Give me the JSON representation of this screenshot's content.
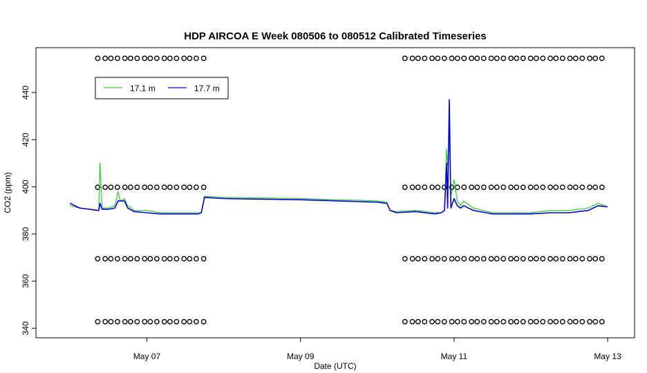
{
  "chart_data": {
    "type": "line",
    "title": "HDP AIRCOA E  Week 080506 to 080512  Calibrated Timeseries",
    "xlabel": "Date (UTC)",
    "ylabel": "CO2 (ppm)",
    "xlim": [
      "2008-05-06 00:00",
      "2008-05-13 00:00"
    ],
    "ylim": [
      340,
      455
    ],
    "x_ticks": [
      {
        "label": "May 07",
        "value": "2008-05-07 00:00"
      },
      {
        "label": "May 09",
        "value": "2008-05-09 00:00"
      },
      {
        "label": "May 11",
        "value": "2008-05-11 00:00"
      },
      {
        "label": "May 13",
        "value": "2008-05-13 00:00"
      }
    ],
    "y_ticks": [
      {
        "label": "340",
        "value": 340
      },
      {
        "label": "360",
        "value": 360
      },
      {
        "label": "380",
        "value": 380
      },
      {
        "label": "400",
        "value": 400
      },
      {
        "label": "420",
        "value": 420
      },
      {
        "label": "440",
        "value": 440
      }
    ],
    "legend": {
      "placement": "top-left"
    },
    "series": [
      {
        "name": "17.1 m",
        "color": "#00c000",
        "x": [
          "2008-05-06 00:00",
          "2008-05-06 03:00",
          "2008-05-06 06:00",
          "2008-05-06 08:30",
          "2008-05-06 09:00",
          "2008-05-06 09:20",
          "2008-05-06 10:00",
          "2008-05-06 12:00",
          "2008-05-06 14:00",
          "2008-05-06 15:00",
          "2008-05-06 15:40",
          "2008-05-06 17:00",
          "2008-05-06 18:00",
          "2008-05-06 20:00",
          "2008-05-07 00:00",
          "2008-05-07 04:00",
          "2008-05-07 08:00",
          "2008-05-07 12:00",
          "2008-05-07 16:00",
          "2008-05-07 17:00",
          "2008-05-07 18:00",
          "2008-05-08 00:00",
          "2008-05-09 00:00",
          "2008-05-10 00:00",
          "2008-05-10 03:00",
          "2008-05-10 04:00",
          "2008-05-10 06:00",
          "2008-05-10 12:00",
          "2008-05-10 18:00",
          "2008-05-10 20:00",
          "2008-05-10 21:00",
          "2008-05-10 21:40",
          "2008-05-10 22:00",
          "2008-05-10 22:30",
          "2008-05-10 23:00",
          "2008-05-11 00:00",
          "2008-05-11 01:00",
          "2008-05-11 02:00",
          "2008-05-11 03:00",
          "2008-05-11 06:00",
          "2008-05-11 12:00",
          "2008-05-11 18:00",
          "2008-05-12 00:00",
          "2008-05-12 06:00",
          "2008-05-12 12:00",
          "2008-05-12 18:00",
          "2008-05-12 21:00",
          "2008-05-13 00:00"
        ],
        "y": [
          392,
          391,
          390.5,
          390,
          390,
          410,
          391,
          391,
          392,
          398,
          394,
          395,
          392,
          390,
          390,
          389,
          389,
          389,
          389,
          389,
          396,
          395.5,
          395,
          394,
          393.5,
          390,
          389.5,
          390,
          389,
          389,
          390,
          416,
          409,
          423,
          396,
          403,
          394,
          392,
          394,
          391,
          389,
          389,
          389,
          390,
          390,
          391,
          393,
          391.5
        ]
      },
      {
        "name": "17.7 m",
        "color": "#0000dd",
        "x": [
          "2008-05-06 00:00",
          "2008-05-06 03:00",
          "2008-05-06 06:00",
          "2008-05-06 08:30",
          "2008-05-06 09:00",
          "2008-05-06 09:20",
          "2008-05-06 10:00",
          "2008-05-06 12:00",
          "2008-05-06 14:00",
          "2008-05-06 15:00",
          "2008-05-06 15:40",
          "2008-05-06 17:00",
          "2008-05-06 18:00",
          "2008-05-06 20:00",
          "2008-05-07 00:00",
          "2008-05-07 04:00",
          "2008-05-07 08:00",
          "2008-05-07 12:00",
          "2008-05-07 16:00",
          "2008-05-07 17:00",
          "2008-05-07 18:00",
          "2008-05-08 00:00",
          "2008-05-09 00:00",
          "2008-05-10 00:00",
          "2008-05-10 03:00",
          "2008-05-10 04:00",
          "2008-05-10 06:00",
          "2008-05-10 12:00",
          "2008-05-10 18:00",
          "2008-05-10 20:00",
          "2008-05-10 21:00",
          "2008-05-10 21:40",
          "2008-05-10 22:00",
          "2008-05-10 22:30",
          "2008-05-10 23:00",
          "2008-05-11 00:00",
          "2008-05-11 01:00",
          "2008-05-11 02:00",
          "2008-05-11 03:00",
          "2008-05-11 06:00",
          "2008-05-11 12:00",
          "2008-05-11 18:00",
          "2008-05-12 00:00",
          "2008-05-12 06:00",
          "2008-05-12 12:00",
          "2008-05-12 18:00",
          "2008-05-12 21:00",
          "2008-05-13 00:00"
        ],
        "y": [
          393,
          391,
          390.5,
          390,
          390,
          393,
          390.5,
          390.5,
          391,
          394,
          394,
          394,
          391,
          389.5,
          389,
          388.5,
          388.5,
          388.5,
          388.5,
          389,
          395.5,
          395,
          394.5,
          393.5,
          393,
          390,
          389,
          389.5,
          388.5,
          389,
          390,
          410,
          391,
          437,
          391,
          395,
          392,
          391,
          392,
          390,
          388.5,
          388.5,
          388.5,
          389,
          389,
          390,
          392,
          391.5
        ]
      }
    ],
    "calibration_markers": {
      "symbol": "o",
      "levels": [
        {
          "y": 454.5,
          "x_start": [
            "2008-05-06 00:00",
            "2008-05-10 00:00"
          ],
          "x_end": [
            "2008-05-07 18:00",
            "2008-05-13 00:00"
          ]
        },
        {
          "y": 399.8,
          "x_start": [
            "2008-05-06 00:00",
            "2008-05-10 00:00"
          ],
          "x_end": [
            "2008-05-07 18:00",
            "2008-05-13 00:00"
          ]
        },
        {
          "y": 369.5,
          "x_start": [
            "2008-05-06 00:00",
            "2008-05-10 00:00"
          ],
          "x_end": [
            "2008-05-07 18:00",
            "2008-05-13 00:00"
          ]
        },
        {
          "y": 342.8,
          "x_start": [
            "2008-05-06 00:00",
            "2008-05-10 00:00"
          ],
          "x_end": [
            "2008-05-07 18:00",
            "2008-05-13 00:00"
          ]
        }
      ]
    }
  }
}
